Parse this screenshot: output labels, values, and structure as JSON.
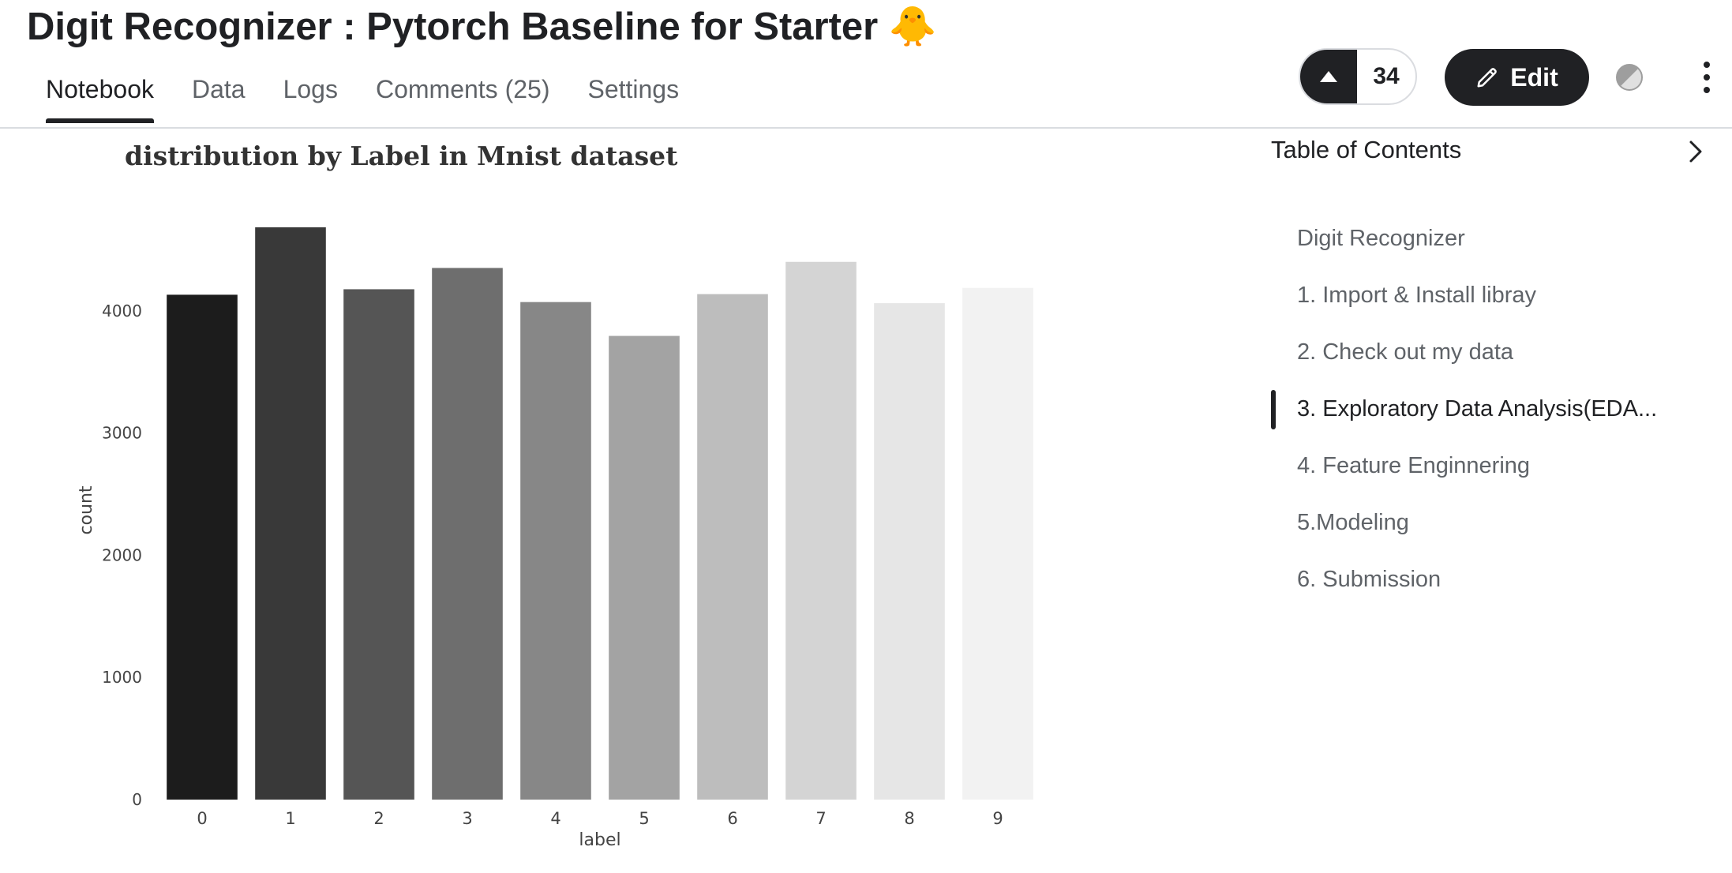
{
  "header": {
    "title": "Digit Recognizer : Pytorch Baseline for Starter 🐥",
    "vote_count": "34",
    "edit_label": "Edit"
  },
  "tabs": [
    {
      "label": "Notebook",
      "active": true
    },
    {
      "label": "Data"
    },
    {
      "label": "Logs"
    },
    {
      "label": "Comments (25)"
    },
    {
      "label": "Settings"
    }
  ],
  "toc": {
    "header": "Table of Contents",
    "items": [
      {
        "label": "Digit Recognizer"
      },
      {
        "label": "1. Import & Install libray"
      },
      {
        "label": "2. Check out my data"
      },
      {
        "label": "3. Exploratory Data Analysis(EDA..."
      },
      {
        "label": "4. Feature Enginnering"
      },
      {
        "label": "5.Modeling"
      },
      {
        "label": "6. Submission"
      }
    ],
    "active_index": 3
  },
  "chart_data": {
    "type": "bar",
    "title": "distribution by Label in Mnist dataset",
    "xlabel": "label",
    "ylabel": "count",
    "categories": [
      "0",
      "1",
      "2",
      "3",
      "4",
      "5",
      "6",
      "7",
      "8",
      "9"
    ],
    "values": [
      4132,
      4684,
      4177,
      4351,
      4072,
      3795,
      4137,
      4401,
      4063,
      4188
    ],
    "ylim": [
      0,
      4800
    ],
    "yticks": [
      0,
      1000,
      2000,
      3000,
      4000
    ],
    "colors": [
      "#1c1c1c",
      "#393939",
      "#555555",
      "#6e6e6e",
      "#878787",
      "#a3a3a3",
      "#bdbdbd",
      "#d4d4d4",
      "#e6e6e6",
      "#f2f2f2"
    ],
    "grid": false
  }
}
